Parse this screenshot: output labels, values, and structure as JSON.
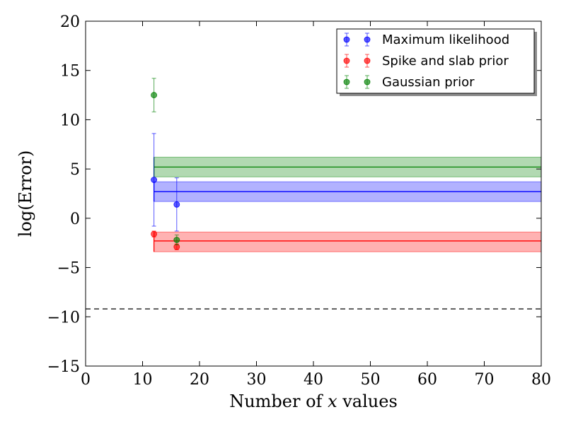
{
  "chart_data": {
    "type": "scatter",
    "xlabel_prefix": "Number of ",
    "xlabel_var": "x",
    "xlabel_suffix": " values",
    "ylabel": "log(Error)",
    "xlim": [
      0,
      80
    ],
    "ylim": [
      -15,
      20
    ],
    "xticks": [
      0,
      10,
      20,
      30,
      40,
      50,
      60,
      70,
      80
    ],
    "yticks": [
      -15,
      -10,
      -5,
      0,
      5,
      10,
      15,
      20
    ],
    "ytick_labels": [
      "−15",
      "−10",
      "−5",
      "0",
      "5",
      "10",
      "15",
      "20"
    ],
    "grid": false,
    "legend_position": "top-right",
    "reference_line": {
      "y": -9.2,
      "style": "dashed",
      "color": "#000000"
    },
    "series": [
      {
        "name": "Maximum likelihood",
        "color": "#0000ff",
        "points": [
          {
            "x": 12,
            "y": 3.9,
            "err": 4.7
          },
          {
            "x": 16,
            "y": 1.4,
            "err": 2.7
          }
        ],
        "band": {
          "x_start": 12,
          "x_end": 80,
          "mean": 2.7,
          "lower": 1.7,
          "upper": 3.7
        }
      },
      {
        "name": "Spike and slab prior",
        "color": "#ff0000",
        "points": [
          {
            "x": 12,
            "y": -1.6,
            "err": 0.3
          },
          {
            "x": 16,
            "y": -2.9,
            "err": 0.3
          }
        ],
        "band": {
          "x_start": 12,
          "x_end": 80,
          "mean": -2.3,
          "lower": -3.4,
          "upper": -1.4
        }
      },
      {
        "name": "Gaussian prior",
        "color": "#008000",
        "points": [
          {
            "x": 12,
            "y": 12.5,
            "err": 1.7
          },
          {
            "x": 16,
            "y": -2.2,
            "err": 0.5
          }
        ],
        "band": {
          "x_start": 12,
          "x_end": 80,
          "mean": 5.2,
          "lower": 4.2,
          "upper": 6.2
        }
      }
    ]
  }
}
